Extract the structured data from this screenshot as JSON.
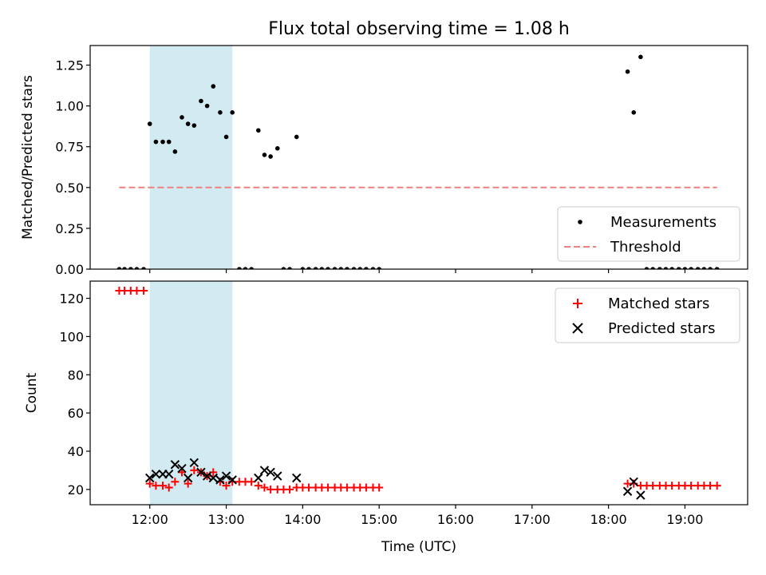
{
  "chart_data": [
    {
      "type": "scatter",
      "title": "Flux total observing time = 1.08 h",
      "ylabel": "Matched/Predicted stars",
      "xlabel": "",
      "xlim": [
        11.22,
        19.82
      ],
      "ylim": [
        0,
        1.37
      ],
      "yticks": [
        0,
        0.25,
        0.5,
        0.75,
        1.0,
        1.25
      ],
      "ytick_labels": [
        "0.00",
        "0.25",
        "0.50",
        "0.75",
        "1.00",
        "1.25"
      ],
      "xticks": [
        12,
        13,
        14,
        15,
        16,
        17,
        18,
        19
      ],
      "xtick_labels_shown": false,
      "shaded_region": {
        "x0": 12.0,
        "x1": 13.08,
        "color": "#add8e6"
      },
      "legend_position": "lower-right",
      "series": [
        {
          "name": "Measurements",
          "kind": "points",
          "color": "#000000",
          "x": [
            11.6,
            11.67,
            11.75,
            11.83,
            11.92,
            12.0,
            12.08,
            12.17,
            12.25,
            12.33,
            12.42,
            12.5,
            12.58,
            12.67,
            12.75,
            12.83,
            12.92,
            13.0,
            13.08,
            13.17,
            13.25,
            13.33,
            13.42,
            13.5,
            13.58,
            13.67,
            13.75,
            13.83,
            13.92,
            14.0,
            14.08,
            14.17,
            14.25,
            14.33,
            14.42,
            14.5,
            14.58,
            14.67,
            14.75,
            14.83,
            14.92,
            15.0,
            18.25,
            18.33,
            18.42,
            18.5,
            18.58,
            18.67,
            18.75,
            18.83,
            18.92,
            19.0,
            19.08,
            19.17,
            19.25,
            19.33,
            19.42
          ],
          "y": [
            0,
            0,
            0,
            0,
            0,
            0.89,
            0.78,
            0.78,
            0.78,
            0.72,
            0.93,
            0.89,
            0.88,
            1.03,
            1.0,
            1.12,
            0.96,
            0.81,
            0.96,
            0,
            0,
            0,
            0.85,
            0.7,
            0.69,
            0.74,
            0,
            0,
            0.81,
            0,
            0,
            0,
            0,
            0,
            0,
            0,
            0,
            0,
            0,
            0,
            0,
            0,
            1.21,
            0.96,
            1.3,
            0,
            0,
            0,
            0,
            0,
            0,
            0,
            0,
            0,
            0,
            0,
            0
          ]
        },
        {
          "name": "Threshold",
          "kind": "dashed-line",
          "color": "#f08080",
          "x": [
            11.6,
            19.42
          ],
          "y": [
            0.5,
            0.5
          ]
        }
      ]
    },
    {
      "type": "scatter",
      "title": "",
      "ylabel": "Count",
      "xlabel": "Time (UTC)",
      "xlim": [
        11.22,
        19.82
      ],
      "ylim": [
        12,
        129
      ],
      "yticks": [
        20,
        40,
        60,
        80,
        100,
        120
      ],
      "ytick_labels": [
        "20",
        "40",
        "60",
        "80",
        "100",
        "120"
      ],
      "xticks": [
        12,
        13,
        14,
        15,
        16,
        17,
        18,
        19
      ],
      "xtick_labels": [
        "12:00",
        "13:00",
        "14:00",
        "15:00",
        "16:00",
        "17:00",
        "18:00",
        "19:00"
      ],
      "shaded_region": {
        "x0": 12.0,
        "x1": 13.08,
        "color": "#add8e6"
      },
      "legend_position": "upper-right",
      "series": [
        {
          "name": "Matched stars",
          "kind": "plus",
          "color": "#ff0000",
          "x": [
            11.6,
            11.67,
            11.75,
            11.83,
            11.92,
            12.0,
            12.08,
            12.17,
            12.25,
            12.33,
            12.42,
            12.5,
            12.58,
            12.67,
            12.75,
            12.83,
            12.92,
            13.0,
            13.08,
            13.17,
            13.25,
            13.33,
            13.42,
            13.5,
            13.58,
            13.67,
            13.75,
            13.83,
            13.92,
            14.0,
            14.08,
            14.17,
            14.25,
            14.33,
            14.42,
            14.5,
            14.58,
            14.67,
            14.75,
            14.83,
            14.92,
            15.0,
            18.25,
            18.33,
            18.42,
            18.5,
            18.58,
            18.67,
            18.75,
            18.83,
            18.92,
            19.0,
            19.08,
            19.17,
            19.25,
            19.33,
            19.42
          ],
          "y": [
            124,
            124,
            124,
            124,
            124,
            23,
            22,
            22,
            21,
            24,
            29,
            23,
            30,
            29,
            27,
            29,
            24,
            22,
            24,
            24,
            24,
            24,
            22,
            21,
            20,
            20,
            20,
            20,
            21,
            21,
            21,
            21,
            21,
            21,
            21,
            21,
            21,
            21,
            21,
            21,
            21,
            21,
            23,
            23,
            22,
            22,
            22,
            22,
            22,
            22,
            22,
            22,
            22,
            22,
            22,
            22,
            22
          ]
        },
        {
          "name": "Predicted stars",
          "kind": "x",
          "color": "#000000",
          "x": [
            12.0,
            12.08,
            12.17,
            12.25,
            12.33,
            12.42,
            12.5,
            12.58,
            12.67,
            12.75,
            12.83,
            12.92,
            13.0,
            13.08,
            13.42,
            13.5,
            13.58,
            13.67,
            13.92,
            18.25,
            18.33,
            18.42
          ],
          "y": [
            26,
            28,
            28,
            28,
            33,
            31,
            26,
            34,
            29,
            27,
            26,
            25,
            27,
            25,
            26,
            30,
            29,
            27,
            26,
            19,
            24,
            17
          ]
        }
      ]
    }
  ]
}
